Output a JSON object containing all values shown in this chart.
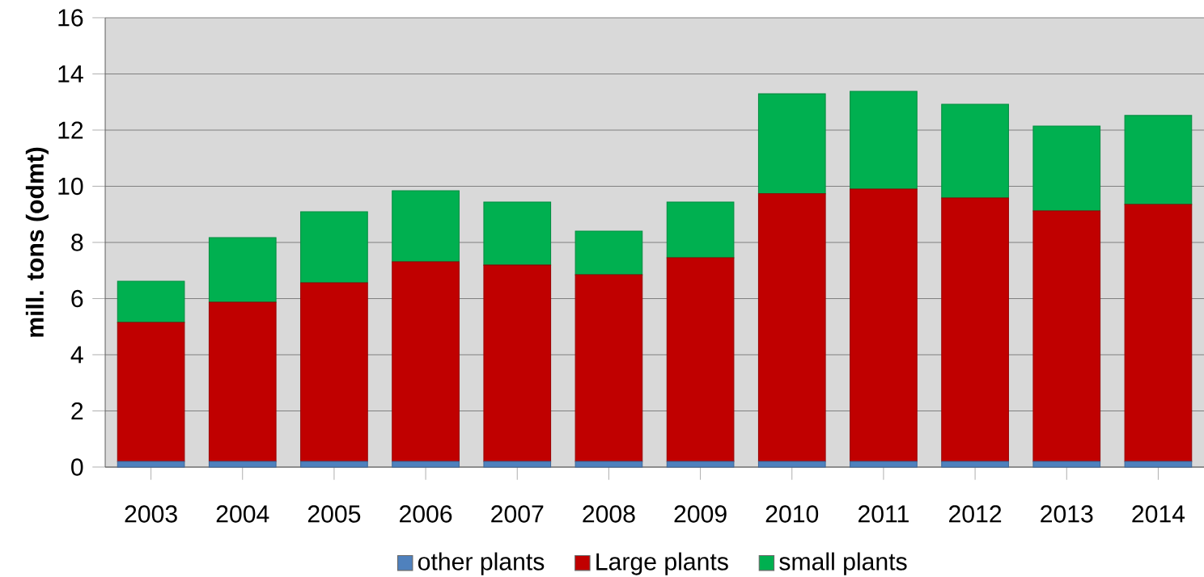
{
  "chart_data": {
    "type": "bar",
    "stacked": true,
    "ylabel": "mill. tons (odmt)",
    "categories": [
      "2003",
      "2004",
      "2005",
      "2006",
      "2007",
      "2008",
      "2009",
      "2010",
      "2011",
      "2012",
      "2013",
      "2014"
    ],
    "series": [
      {
        "name": "other plants",
        "color": "#4f81bd",
        "values": [
          0.2,
          0.2,
          0.2,
          0.2,
          0.2,
          0.2,
          0.2,
          0.2,
          0.2,
          0.2,
          0.2,
          0.2
        ]
      },
      {
        "name": "Large plants",
        "color": "#c00000",
        "values": [
          4.95,
          5.67,
          6.36,
          7.11,
          6.99,
          6.65,
          7.25,
          9.53,
          9.7,
          9.38,
          8.92,
          9.15
        ]
      },
      {
        "name": "small plants",
        "color": "#00b050",
        "values": [
          1.47,
          2.3,
          2.53,
          2.53,
          2.25,
          1.55,
          1.99,
          3.56,
          3.48,
          3.34,
          3.02,
          3.17
        ]
      }
    ],
    "ylim": [
      0,
      16
    ],
    "yticks": [
      0,
      2,
      4,
      6,
      8,
      10,
      12,
      14,
      16
    ],
    "grid": "y",
    "legend": "bottom"
  }
}
